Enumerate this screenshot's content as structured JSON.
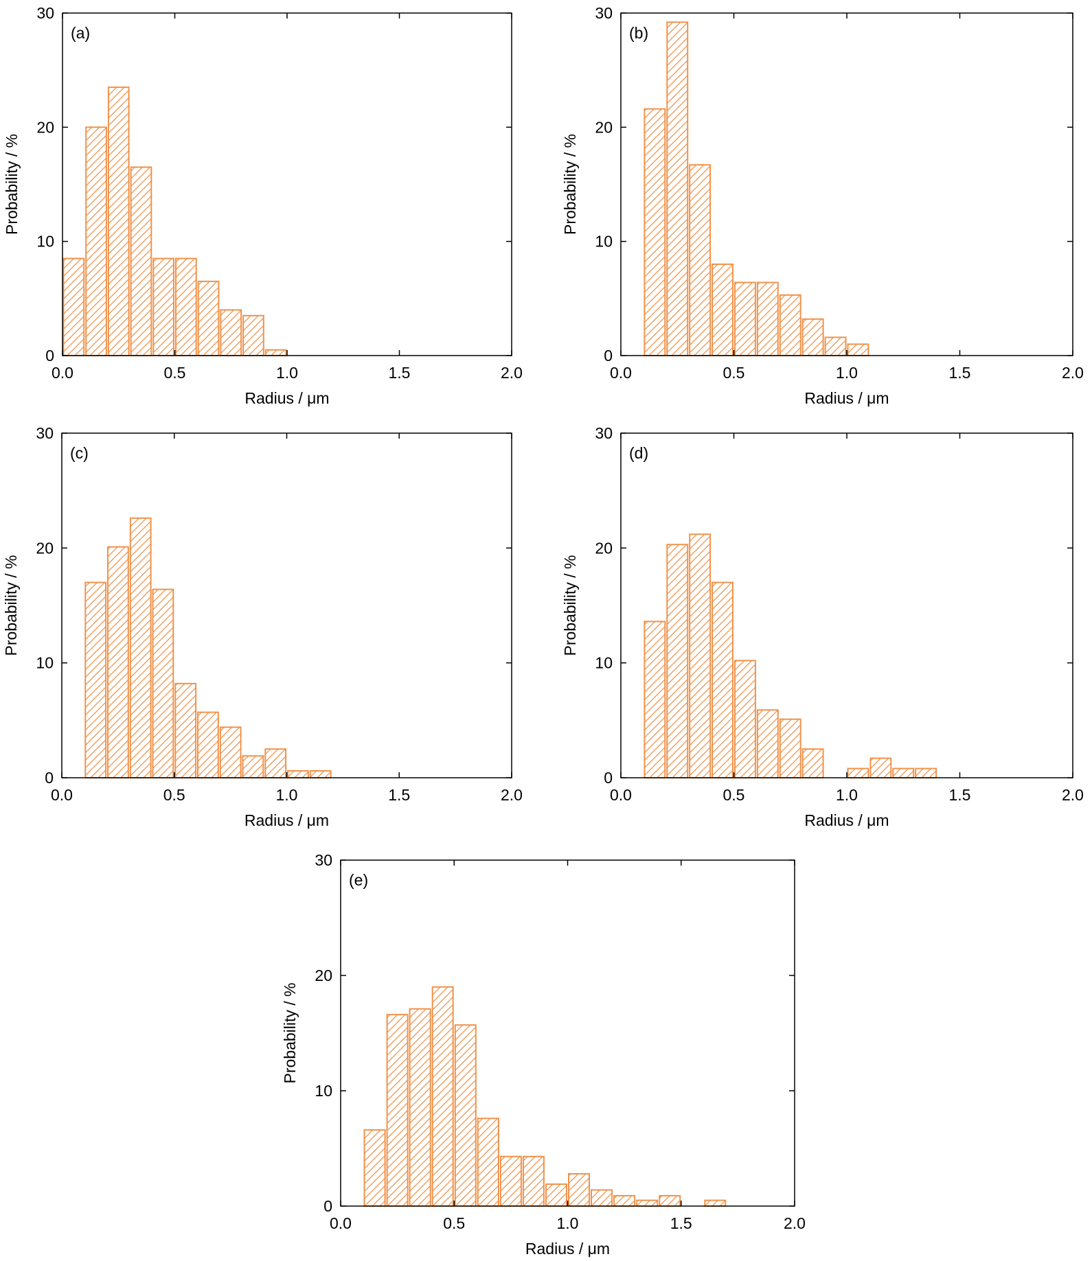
{
  "colors": {
    "bar": "#f0924a",
    "axis": "#000000",
    "background": "#ffffff"
  },
  "chart_data": [
    {
      "type": "bar",
      "panel": "(a)",
      "xlabel": "Radius /  μm",
      "ylabel": "Probability / %",
      "xlim": [
        0.0,
        2.0
      ],
      "ylim": [
        0,
        30
      ],
      "xticks": [
        "0.0",
        "0.5",
        "1.0",
        "1.5",
        "2.0"
      ],
      "yticks": [
        "0",
        "10",
        "20",
        "30"
      ],
      "bin_width": 0.1,
      "x": [
        0.0,
        0.1,
        0.2,
        0.3,
        0.4,
        0.5,
        0.6,
        0.7,
        0.8,
        0.9
      ],
      "values": [
        8.5,
        20.0,
        23.5,
        16.5,
        8.5,
        8.5,
        6.5,
        4.0,
        3.5,
        0.5
      ]
    },
    {
      "type": "bar",
      "panel": "(b)",
      "xlabel": "Radius / μm",
      "ylabel": "Probability / %",
      "xlim": [
        0.0,
        2.0
      ],
      "ylim": [
        0,
        30
      ],
      "xticks": [
        "0.0",
        "0.5",
        "1.0",
        "1.5",
        "2.0"
      ],
      "yticks": [
        "0",
        "10",
        "20",
        "30"
      ],
      "bin_width": 0.1,
      "x": [
        0.1,
        0.2,
        0.3,
        0.4,
        0.5,
        0.6,
        0.7,
        0.8,
        0.9,
        1.0
      ],
      "values": [
        21.6,
        29.2,
        16.7,
        8.0,
        6.4,
        6.4,
        5.3,
        3.2,
        1.6,
        1.0
      ]
    },
    {
      "type": "bar",
      "panel": "(c)",
      "xlabel": "Radius / μm",
      "ylabel": "Probability / %",
      "xlim": [
        0.0,
        2.0
      ],
      "ylim": [
        0,
        30
      ],
      "xticks": [
        "0.0",
        "0.5",
        "1.0",
        "1.5",
        "2.0"
      ],
      "yticks": [
        "0",
        "10",
        "20",
        "30"
      ],
      "bin_width": 0.1,
      "x": [
        0.1,
        0.2,
        0.3,
        0.4,
        0.5,
        0.6,
        0.7,
        0.8,
        0.9,
        1.0,
        1.1
      ],
      "values": [
        17.0,
        20.1,
        22.6,
        16.4,
        8.2,
        5.7,
        4.4,
        1.9,
        2.5,
        0.6,
        0.6
      ]
    },
    {
      "type": "bar",
      "panel": "(d)",
      "xlabel": "Radius /  μm",
      "ylabel": "Probability / %",
      "xlim": [
        0.0,
        2.0
      ],
      "ylim": [
        0,
        30
      ],
      "xticks": [
        "0.0",
        "0.5",
        "1.0",
        "1.5",
        "2.0"
      ],
      "yticks": [
        "0",
        "10",
        "20",
        "30"
      ],
      "bin_width": 0.1,
      "x": [
        0.1,
        0.2,
        0.3,
        0.4,
        0.5,
        0.6,
        0.7,
        0.8,
        1.0,
        1.1,
        1.2,
        1.3
      ],
      "values": [
        13.6,
        20.3,
        21.2,
        17.0,
        10.2,
        5.9,
        5.1,
        2.5,
        0.8,
        1.7,
        0.8,
        0.8
      ]
    },
    {
      "type": "bar",
      "panel": "(e)",
      "xlabel": "Radius / μm",
      "ylabel": "Probability / %",
      "xlim": [
        0.0,
        2.0
      ],
      "ylim": [
        0,
        30
      ],
      "xticks": [
        "0.0",
        "0.5",
        "1.0",
        "1.5",
        "2.0"
      ],
      "yticks": [
        "0",
        "10",
        "20",
        "30"
      ],
      "bin_width": 0.1,
      "x": [
        0.1,
        0.2,
        0.3,
        0.4,
        0.5,
        0.6,
        0.7,
        0.8,
        0.9,
        1.0,
        1.1,
        1.2,
        1.3,
        1.4,
        1.6
      ],
      "values": [
        6.6,
        16.6,
        17.1,
        19.0,
        15.7,
        7.6,
        4.3,
        4.3,
        1.9,
        2.8,
        1.4,
        0.9,
        0.5,
        0.9,
        0.5
      ]
    }
  ]
}
